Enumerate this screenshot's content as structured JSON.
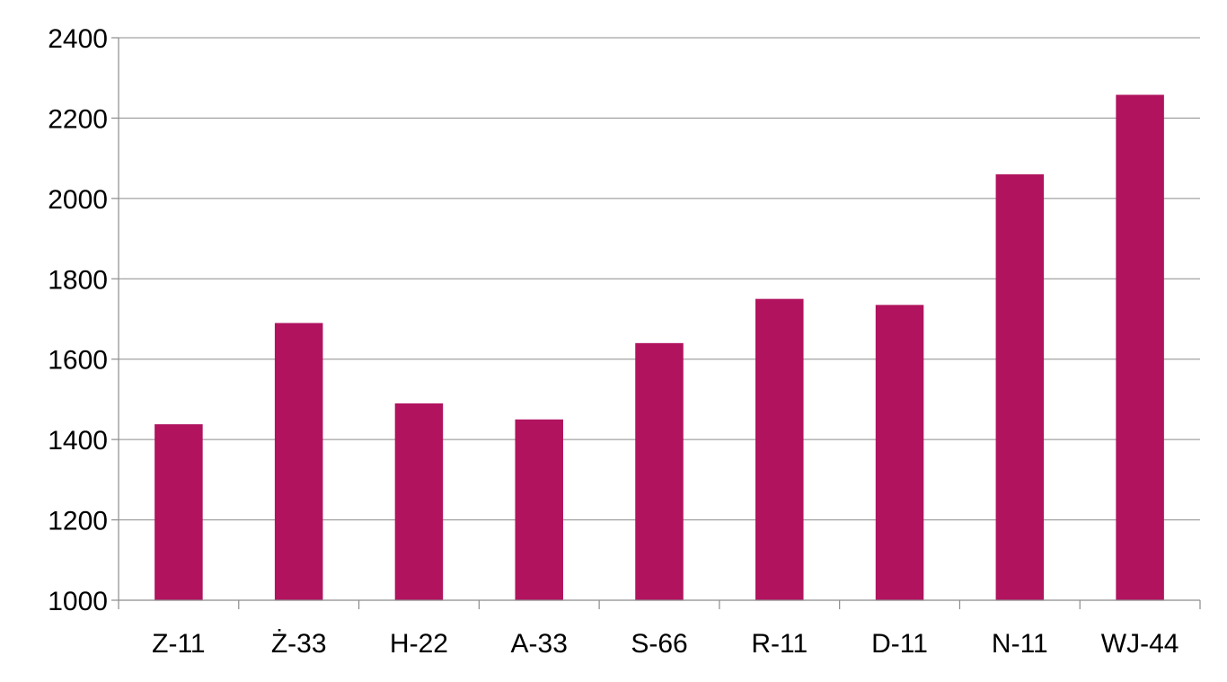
{
  "chart_data": {
    "type": "bar",
    "title": "",
    "xlabel": "",
    "ylabel": "",
    "categories": [
      "Z-11",
      "Ż-33",
      "H-22",
      "A-33",
      "S-66",
      "R-11",
      "D-11",
      "N-11",
      "WJ-44"
    ],
    "values": [
      1438,
      1690,
      1490,
      1450,
      1640,
      1750,
      1735,
      2060,
      2258
    ],
    "ylim": [
      1000,
      2400
    ],
    "yticks": [
      "1000",
      "1200",
      "1400",
      "1600",
      "1800",
      "2000",
      "2200",
      "2400"
    ],
    "grid": true,
    "legend": "none",
    "bar_color": "#b1135f"
  }
}
